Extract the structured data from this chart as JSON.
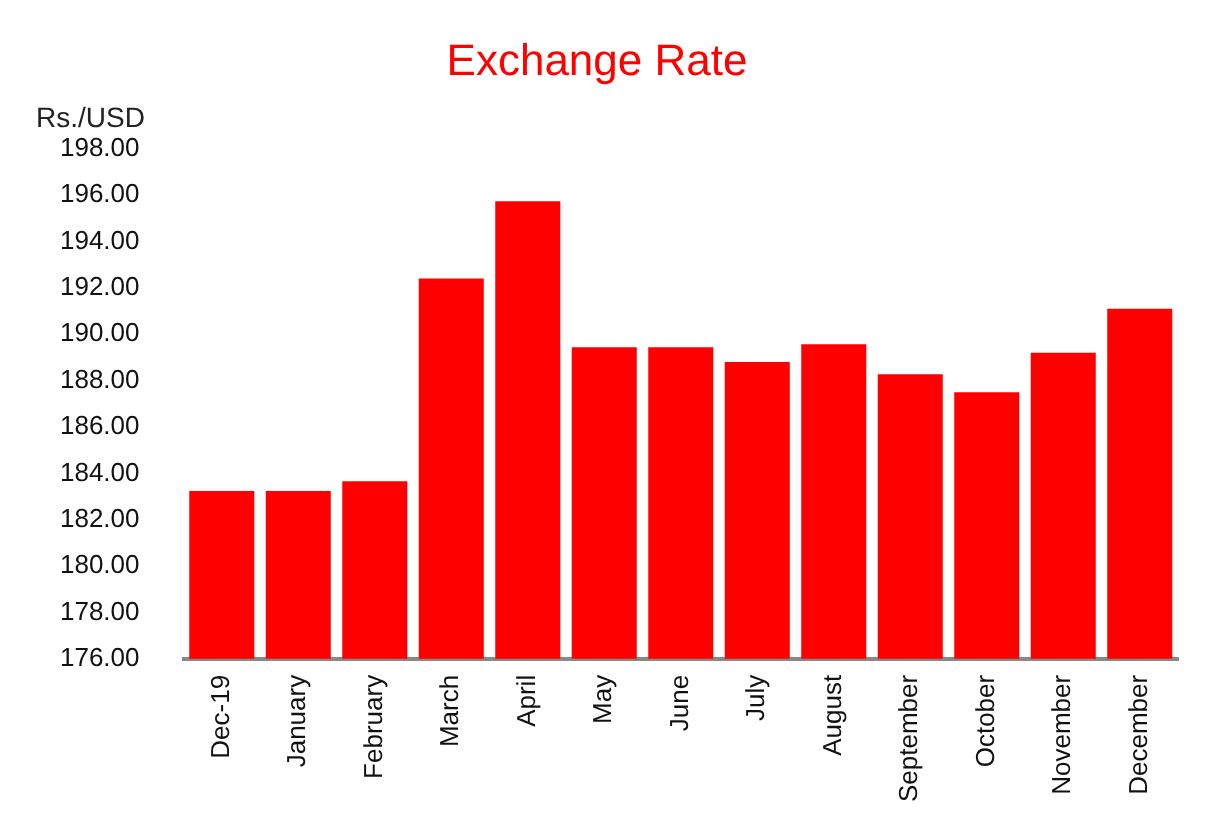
{
  "chart_data": {
    "type": "bar",
    "title": "Exchange Rate",
    "ylabel": "Rs./USD",
    "categories": [
      "Dec-19",
      "January",
      "February",
      "March",
      "April",
      "May",
      "June",
      "July",
      "August",
      "September",
      "October",
      "November",
      "December"
    ],
    "values": [
      183.24,
      183.24,
      183.66,
      192.4,
      195.74,
      189.44,
      189.44,
      188.8,
      189.57,
      188.28,
      187.5,
      189.2,
      191.1
    ],
    "color": "#ff0000",
    "ylim": [
      176,
      198
    ],
    "yticks": [
      {
        "value": 176,
        "label": "176.00"
      },
      {
        "value": 178,
        "label": "178.00"
      },
      {
        "value": 180,
        "label": "180.00"
      },
      {
        "value": 182,
        "label": "182.00"
      },
      {
        "value": 184,
        "label": "184.00"
      },
      {
        "value": 186,
        "label": "186.00"
      },
      {
        "value": 188,
        "label": "188.00"
      },
      {
        "value": 190,
        "label": "190.00"
      },
      {
        "value": 192,
        "label": "192.00"
      },
      {
        "value": 194,
        "label": "194.00"
      },
      {
        "value": 196,
        "label": "196.00"
      },
      {
        "value": 198,
        "label": "198.00"
      }
    ],
    "grid": false,
    "legend": false
  }
}
